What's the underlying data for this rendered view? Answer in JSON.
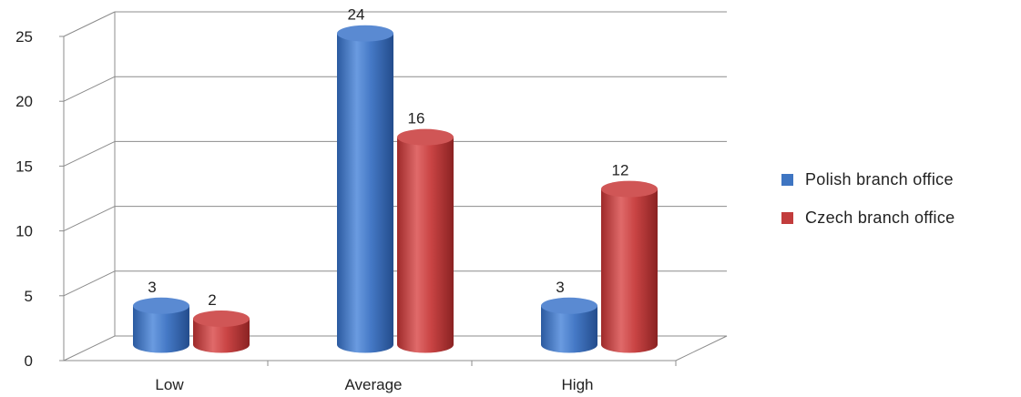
{
  "chart_data": {
    "type": "bar",
    "style": "3d-cylinder",
    "categories": [
      "Low",
      "Average",
      "High"
    ],
    "series": [
      {
        "name": "Polish branch office",
        "values": [
          3,
          24,
          3
        ],
        "color": "#3e75c2"
      },
      {
        "name": "Czech branch office",
        "values": [
          2,
          16,
          12
        ],
        "color": "#c23c3c"
      }
    ],
    "data_labels": [
      [
        "3",
        "24",
        "3"
      ],
      [
        "2",
        "16",
        "12"
      ]
    ],
    "ylim": [
      0,
      25
    ],
    "yticks": [
      "0",
      "5",
      "10",
      "15",
      "20",
      "25"
    ],
    "grid": true,
    "legend_position": "right",
    "title": "",
    "xlabel": "",
    "ylabel": ""
  }
}
